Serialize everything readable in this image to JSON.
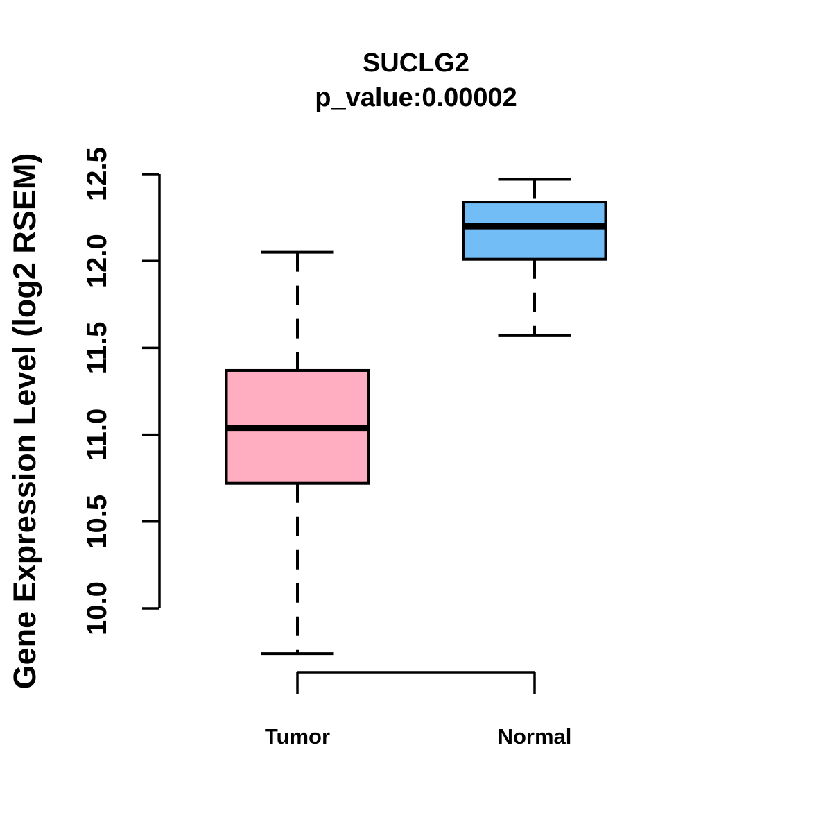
{
  "chart_data": {
    "type": "boxplot",
    "title": "SUCLG2",
    "subtitle": "p_value:0.00002",
    "xlabel": "",
    "ylabel": "Gene Expression Level (log2 RSEM)",
    "categories": [
      "Tumor",
      "Normal"
    ],
    "series": [
      {
        "name": "Tumor",
        "lower_whisker": 9.74,
        "q1": 10.72,
        "median": 11.04,
        "q3": 11.37,
        "upper_whisker": 12.05,
        "fill_color": "#FFAEC1"
      },
      {
        "name": "Normal",
        "lower_whisker": 11.57,
        "q1": 12.01,
        "median": 12.2,
        "q3": 12.34,
        "upper_whisker": 12.47,
        "fill_color": "#73BDF6"
      }
    ],
    "y_ticks": [
      10.0,
      10.5,
      11.0,
      11.5,
      12.0,
      12.5
    ],
    "ylim": [
      9.6,
      12.6
    ],
    "grid": false,
    "legend": "none",
    "stroke_color": "#000000",
    "whisker_style": "dashed"
  }
}
